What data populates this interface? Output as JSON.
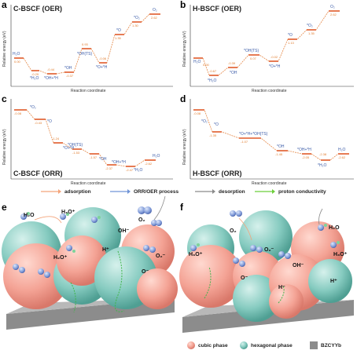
{
  "panels": {
    "a": {
      "letter": "a",
      "title": "C-BSCF (OER)",
      "ylabel": "Relative energy (eV)",
      "xlabel": "Reaction coordinate",
      "states": [
        "H₂O",
        "*H₂O",
        "*OH+*H",
        "*OH",
        "*OH(TS)",
        "*O+*H",
        "*O",
        "*O₂",
        "O₂"
      ],
      "values": [
        "0.00",
        "-0.29",
        "-0.44",
        "-0.37",
        "0.93",
        "-0.06",
        "1.35",
        "1.30",
        "2.62"
      ]
    },
    "b": {
      "letter": "b",
      "title": "H-BSCF (OER)",
      "ylabel": "Relative energy (eV)",
      "xlabel": "Reaction coordinate",
      "states": [
        "H₂O",
        "*H₂O",
        "*OH",
        "*OH(TS)",
        "*O+*H",
        "*O",
        "*O₂",
        "O₂"
      ],
      "values": [
        "0.00",
        "-0.67",
        "-0.39",
        "0.07",
        "-0.02",
        "1.13",
        "1.35",
        "2.62"
      ]
    },
    "c": {
      "letter": "c",
      "title": "C-BSCF (ORR)",
      "ylabel": "Relative energy (eV)",
      "xlabel": "Reaction coordinate",
      "states": [
        "*O₂",
        "*O",
        "*O+*H",
        "*OH(TS)",
        "*OH",
        "*OH+*H",
        "*H₂O",
        "H₂O"
      ],
      "values": [
        "-0.08",
        "-0.43",
        "-1.24",
        "-1.53",
        "-1.57",
        "-2.37",
        "-2.47",
        "-2.62"
      ]
    },
    "d": {
      "letter": "d",
      "title": "H-BSCF (ORR)",
      "ylabel": "Relative energy (eV)",
      "xlabel": "Reaction coordinate",
      "states": [
        "*O₂",
        "*O",
        "*O+*H+*OH(TS)",
        "*OH",
        "*OH+*H",
        "*H₂O",
        "H₂O"
      ],
      "values": [
        "-0.08",
        "-1.35",
        "-1.07",
        "-1.45",
        "-2.05",
        "-2.38",
        "-2.62"
      ]
    }
  },
  "legend": {
    "items": [
      {
        "label": "adsorption",
        "color": "#f4a47a"
      },
      {
        "label": "ORR/OER process",
        "color": "#6f94d6"
      },
      {
        "label": "desorption",
        "color": "#8a8a8a"
      },
      {
        "label": "proton conductivity",
        "color": "#6ccf3a"
      }
    ]
  },
  "scenes": {
    "e": {
      "letter": "e",
      "species": [
        "H₂O",
        "H₃O⁺",
        "O₂",
        "OH⁻",
        "H₂O⁺",
        "H⁺",
        "O⁻",
        "O₂⁻"
      ]
    },
    "f": {
      "letter": "f",
      "species": [
        "O₂",
        "H₂O",
        "H₃O⁺",
        "O₂⁻",
        "O⁻",
        "OH⁻",
        "H₃O⁺",
        "H⁺",
        "H⁻"
      ]
    }
  },
  "bottom_legend": {
    "items": [
      {
        "label": "cubic phase",
        "color": "#f3a79a"
      },
      {
        "label": "hexagonal phase",
        "color": "#7fcac0"
      },
      {
        "label": "BZCYYb",
        "color": "#8c8c8c"
      }
    ]
  }
}
